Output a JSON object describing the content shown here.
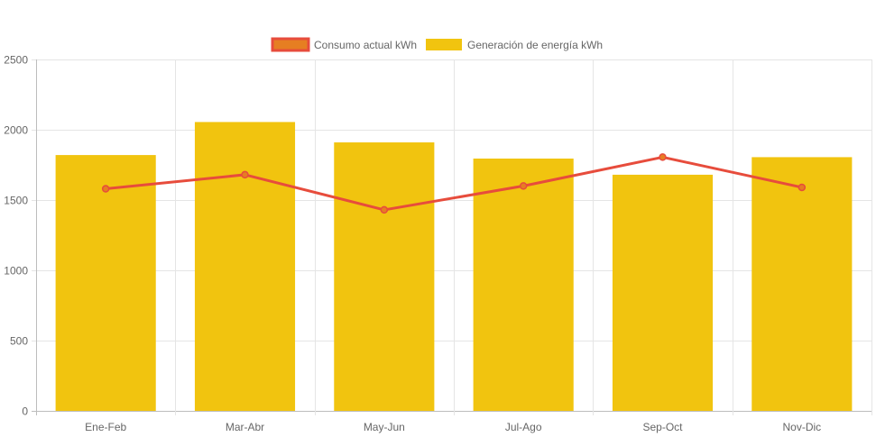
{
  "chart_data": {
    "type": "bar",
    "categories": [
      "Ene-Feb",
      "Mar-Abr",
      "May-Jun",
      "Jul-Ago",
      "Sep-Oct",
      "Nov-Dic"
    ],
    "series": [
      {
        "name": "Consumo actual kWh",
        "type": "line",
        "values": [
          1580,
          1680,
          1430,
          1600,
          1805,
          1590
        ],
        "color": "#e74c3c",
        "fill": "#e67e22"
      },
      {
        "name": "Generación de energía kWh",
        "type": "bar",
        "values": [
          1820,
          2055,
          1910,
          1795,
          1680,
          1805
        ],
        "color": "#f1c40f"
      }
    ],
    "yticks": [
      0,
      500,
      1000,
      1500,
      2000,
      2500
    ],
    "ylim": [
      0,
      2500
    ],
    "grid": true,
    "legend_position": "top-center",
    "title": "",
    "xlabel": "",
    "ylabel": ""
  }
}
